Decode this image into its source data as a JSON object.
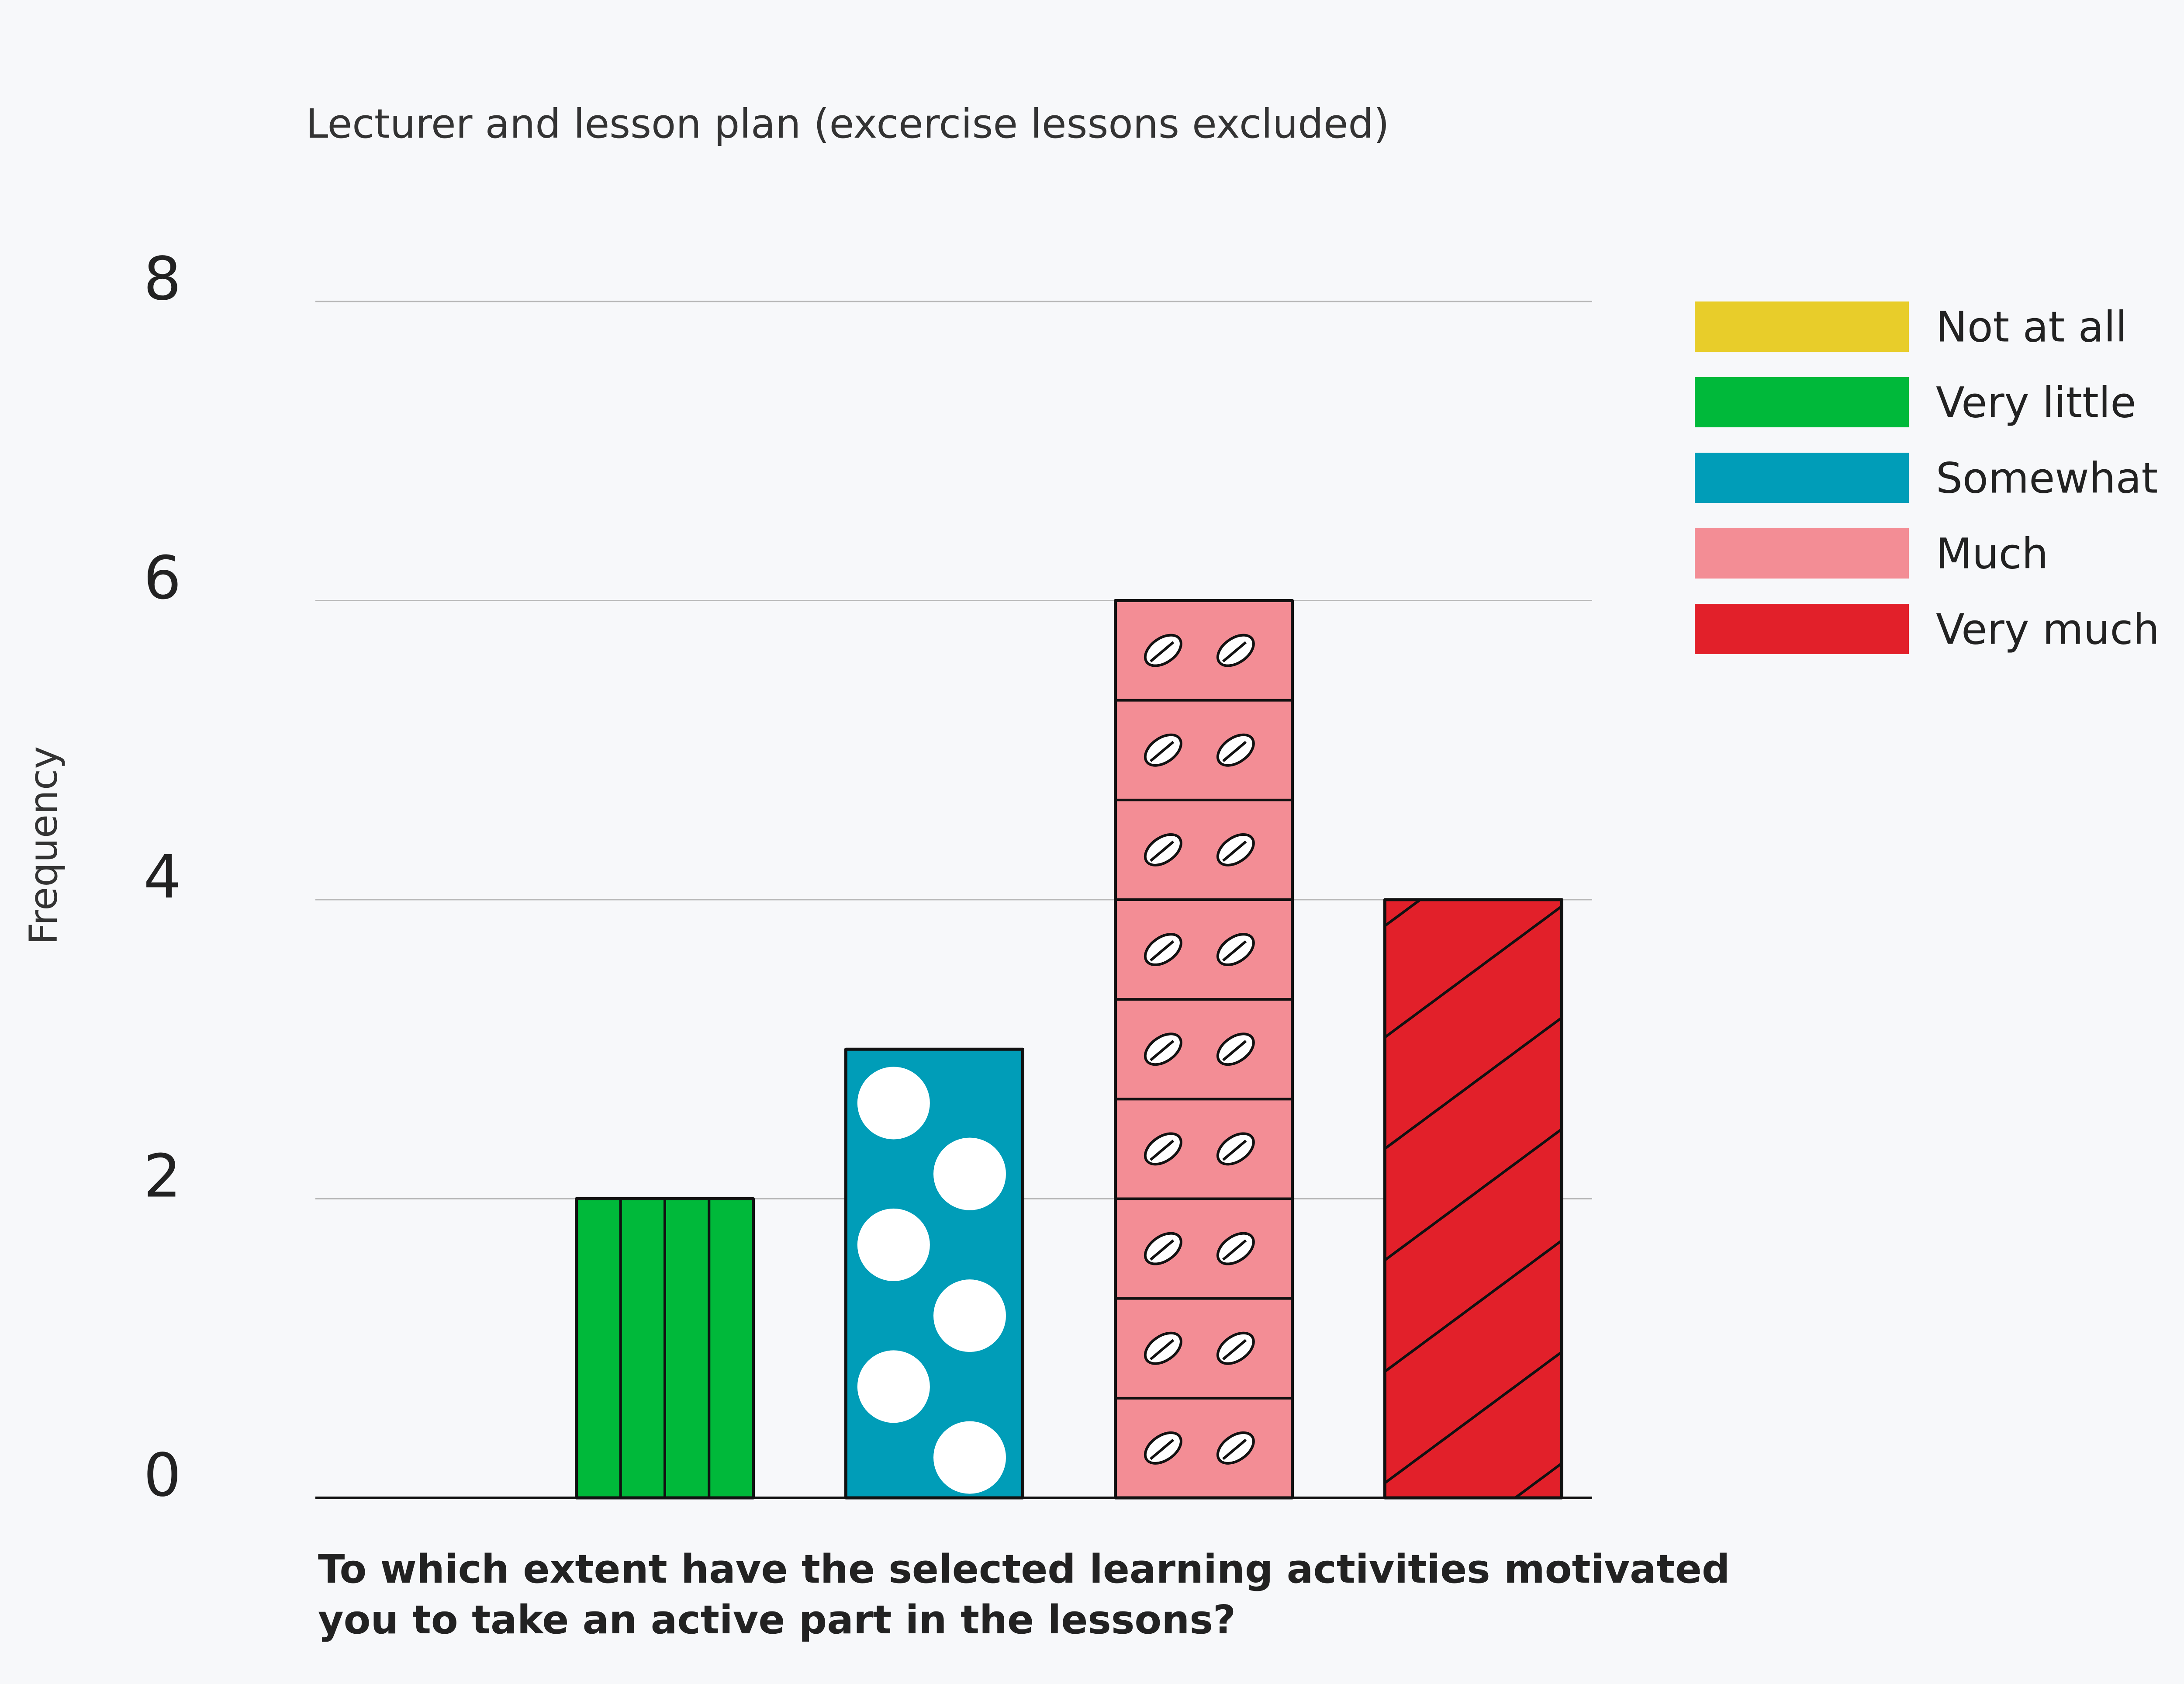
{
  "chart_data": {
    "type": "bar",
    "title": "Lecturer and lesson plan (excercise lessons excluded)",
    "xlabel_lines": [
      "To which extent have the selected learning activities motivated",
      "you to take an active part in the lessons?"
    ],
    "ylabel": "Frequency",
    "ylim": [
      0,
      8
    ],
    "yticks": [
      0,
      2,
      4,
      6,
      8
    ],
    "grid": true,
    "legend_position": "right",
    "categories": [
      "Not at all",
      "Very little",
      "Somewhat",
      "Much",
      "Very much"
    ],
    "values": [
      0,
      2,
      3,
      6,
      4
    ],
    "colors": [
      "#e8cd2a",
      "#00b93a",
      "#009db8",
      "#f38d95",
      "#e2202a"
    ],
    "patterns": [
      "none",
      "vertical-lines",
      "dots",
      "leaf-grid",
      "diagonal-lines"
    ]
  }
}
